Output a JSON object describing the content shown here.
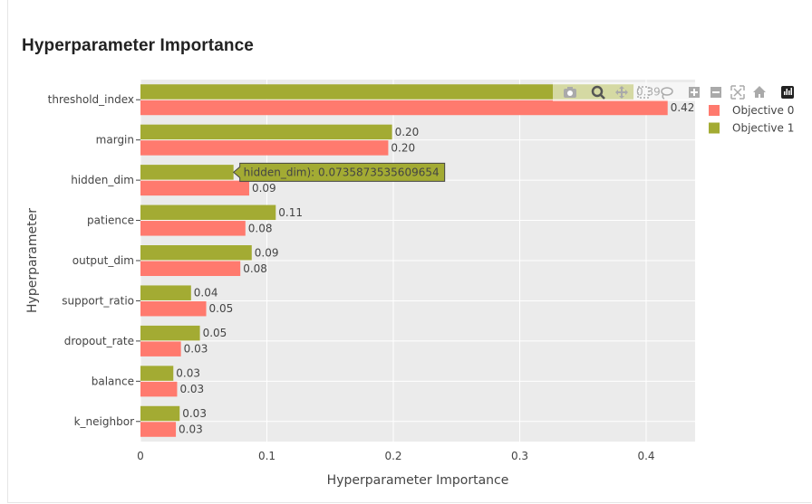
{
  "page_title": "Hyperparameter Importance",
  "chart_data": {
    "type": "bar",
    "orientation": "horizontal",
    "title": "Hyperparameter Importance",
    "xlabel": "Hyperparameter Importance",
    "ylabel": "Hyperparameter",
    "xlim": [
      0,
      0.44
    ],
    "xticks": [
      0,
      0.1,
      0.2,
      0.3,
      0.4
    ],
    "xtick_labels": [
      "0",
      "0.1",
      "0.2",
      "0.3",
      "0.4"
    ],
    "categories": [
      "threshold_index",
      "margin",
      "hidden_dim",
      "patience",
      "output_dim",
      "support_ratio",
      "dropout_rate",
      "balance",
      "k_neighbor"
    ],
    "series": [
      {
        "name": "Objective 0",
        "color": "#ff7a6e",
        "values": [
          0.417,
          0.196,
          0.086,
          0.083,
          0.079,
          0.052,
          0.032,
          0.029,
          0.028
        ],
        "labels": [
          "0.42",
          "0.20",
          "0.09",
          "0.08",
          "0.08",
          "0.05",
          "0.03",
          "0.03",
          "0.03"
        ]
      },
      {
        "name": "Objective 1",
        "color": "#a3ab33",
        "values": [
          0.39,
          0.199,
          0.0736,
          0.107,
          0.088,
          0.04,
          0.047,
          0.026,
          0.031
        ],
        "labels": [
          "0.39",
          "0.20",
          "",
          "0.11",
          "0.09",
          "0.04",
          "0.05",
          "0.03",
          "0.03"
        ]
      }
    ],
    "grid": true,
    "plot_bgcolor": "#ebebeb",
    "legend_position": "right",
    "hover": {
      "category": "hidden_dim",
      "series": "Objective 1",
      "text": "hidden_dim): 0.0735873535609654"
    }
  },
  "modebar": {
    "icons": [
      "camera-icon",
      "zoom-icon",
      "pan-icon",
      "box-select-icon",
      "lasso-icon",
      "zoom-in-icon",
      "zoom-out-icon",
      "autoscale-icon",
      "reset-axes-icon",
      "plotly-logo-icon"
    ]
  }
}
